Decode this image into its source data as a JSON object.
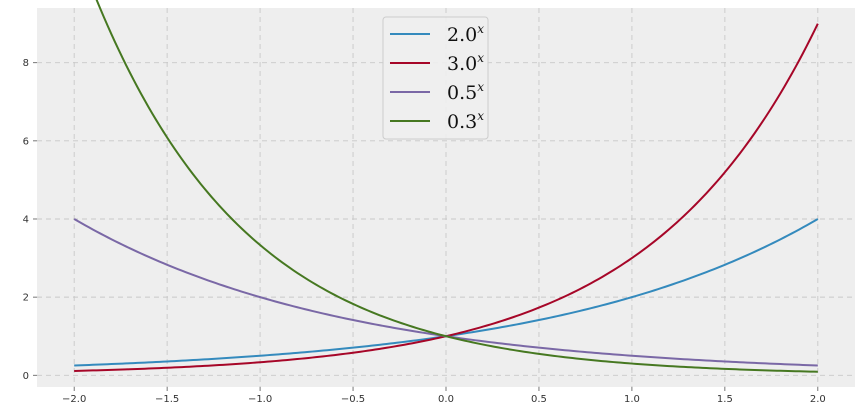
{
  "chart_data": {
    "type": "line",
    "title": "",
    "xlabel": "",
    "ylabel": "",
    "xlim": [
      -2.2,
      2.2
    ],
    "ylim": [
      -0.3,
      9.4
    ],
    "x_ticks": [
      -2.0,
      -1.5,
      -1.0,
      -0.5,
      0.0,
      0.5,
      1.0,
      1.5,
      2.0
    ],
    "x_tick_labels": [
      "−2.0",
      "−1.5",
      "−1.0",
      "−0.5",
      "0.0",
      "0.5",
      "1.0",
      "1.5",
      "2.0"
    ],
    "y_ticks": [
      0,
      2,
      4,
      6,
      8
    ],
    "y_tick_labels": [
      "0",
      "2",
      "4",
      "6",
      "8"
    ],
    "grid": true,
    "legend_position": "top-center",
    "x_range": [
      -2.0,
      2.0
    ],
    "series": [
      {
        "name": "2.0",
        "name_exponent": "x",
        "base": 2.0,
        "color": "#348ABD"
      },
      {
        "name": "3.0",
        "name_exponent": "x",
        "base": 3.0,
        "color": "#A60628"
      },
      {
        "name": "0.5",
        "name_exponent": "x",
        "base": 0.5,
        "color": "#7A68A6"
      },
      {
        "name": "0.3",
        "name_exponent": "x",
        "base": 0.3,
        "color": "#467821"
      }
    ]
  }
}
